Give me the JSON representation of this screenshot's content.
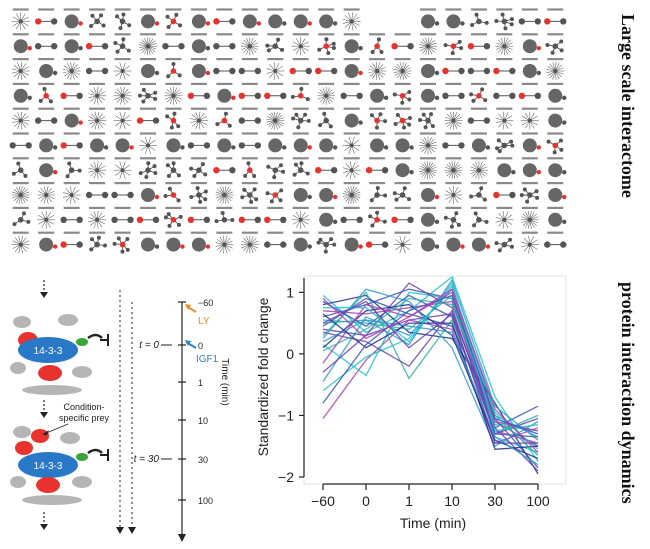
{
  "panel_labels": {
    "top": "Large scale interactome",
    "bottom": "protein interaction dynamics"
  },
  "schematic": {
    "bait": "14-3-3",
    "prey_label_line1": "Condition-",
    "prey_label_line2": "specific prey",
    "time_points": [
      "t = 0",
      "t = 30"
    ],
    "axis_title": "Time (min)",
    "ticks": [
      "−60",
      "0",
      "1",
      "10",
      "30",
      "100"
    ],
    "treatments": [
      {
        "name": "LY",
        "color": "#f08a2b"
      },
      {
        "name": "IGF1",
        "color": "#2a86c8"
      }
    ]
  },
  "colors": {
    "bait": "#2a78c8",
    "prey_red": "#e8322e",
    "prey_gray": "#b5b5b5",
    "prey_green": "#3aa33a",
    "node_dark": "#555555"
  },
  "chart_data": {
    "type": "line",
    "title": "",
    "xlabel": "Time (min)",
    "ylabel": "Standardized fold change",
    "categories": [
      "−60",
      "0",
      "1",
      "10",
      "30",
      "100"
    ],
    "ylim": [
      -2,
      1.2
    ],
    "yticks": [
      1,
      0,
      -1,
      -2
    ],
    "grid": false,
    "legend": "none",
    "series_colors": [
      "#1fc2c8",
      "#2b9bd0",
      "#3a56b8",
      "#6b3fb0",
      "#b03ab4",
      "#1f2d8a",
      "#2fb0a0"
    ],
    "series": [
      {
        "values": [
          0.95,
          0.35,
          0.7,
          1.25,
          -0.7,
          -1.75
        ]
      },
      {
        "values": [
          -0.45,
          0.6,
          0.3,
          1.05,
          -1.0,
          -1.35
        ]
      },
      {
        "values": [
          0.6,
          0.8,
          1.05,
          0.9,
          -1.2,
          -0.85
        ]
      },
      {
        "values": [
          0.4,
          0.3,
          0.55,
          0.65,
          -1.1,
          -1.5
        ]
      },
      {
        "values": [
          -1.05,
          -0.1,
          0.55,
          0.4,
          -1.45,
          -1.2
        ]
      },
      {
        "values": [
          0.8,
          0.95,
          0.35,
          0.25,
          -0.8,
          -1.95
        ]
      },
      {
        "values": [
          0.3,
          1.0,
          -0.4,
          0.55,
          -1.3,
          -1.0
        ]
      },
      {
        "values": [
          0.15,
          -0.35,
          1.0,
          0.9,
          -1.35,
          -1.6
        ]
      },
      {
        "values": [
          0.5,
          0.55,
          0.15,
          1.2,
          -0.85,
          -1.4
        ]
      },
      {
        "values": [
          0.45,
          0.9,
          0.65,
          0.45,
          -1.05,
          -1.85
        ]
      },
      {
        "values": [
          -0.3,
          0.3,
          1.15,
          0.75,
          -1.3,
          -1.05
        ]
      },
      {
        "values": [
          0.7,
          0.65,
          0.75,
          0.85,
          -1.25,
          -1.45
        ]
      },
      {
        "values": [
          0.1,
          0.7,
          0.8,
          0.3,
          -1.4,
          -1.7
        ]
      },
      {
        "values": [
          0.55,
          0.5,
          0.4,
          0.95,
          -1.15,
          -1.25
        ]
      },
      {
        "values": [
          -0.6,
          -0.05,
          0.25,
          1.1,
          -0.95,
          -1.55
        ]
      },
      {
        "values": [
          0.25,
          1.05,
          0.85,
          0.1,
          -1.5,
          -1.1
        ]
      },
      {
        "values": [
          0.85,
          0.45,
          0.95,
          0.6,
          -1.3,
          -1.35
        ]
      },
      {
        "values": [
          0.35,
          0.2,
          -0.2,
          0.7,
          -1.2,
          -1.9
        ]
      },
      {
        "values": [
          -0.15,
          0.8,
          0.6,
          1.0,
          -1.1,
          -1.25
        ]
      },
      {
        "values": [
          0.65,
          0.1,
          0.5,
          0.5,
          -1.55,
          -1.5
        ]
      },
      {
        "values": [
          0.05,
          0.4,
          0.9,
          0.8,
          -1.0,
          -1.65
        ]
      },
      {
        "values": [
          0.75,
          0.75,
          0.2,
          1.15,
          -1.25,
          -1.15
        ]
      },
      {
        "values": [
          0.2,
          0.55,
          0.45,
          0.35,
          -1.35,
          -1.8
        ]
      },
      {
        "values": [
          -0.8,
          0.15,
          0.7,
          0.95,
          -1.05,
          -1.3
        ]
      },
      {
        "values": [
          0.5,
          0.85,
          0.1,
          0.65,
          -1.45,
          -1.45
        ]
      },
      {
        "values": [
          0.9,
          0.25,
          0.6,
          1.05,
          -0.9,
          -1.6
        ]
      }
    ]
  }
}
